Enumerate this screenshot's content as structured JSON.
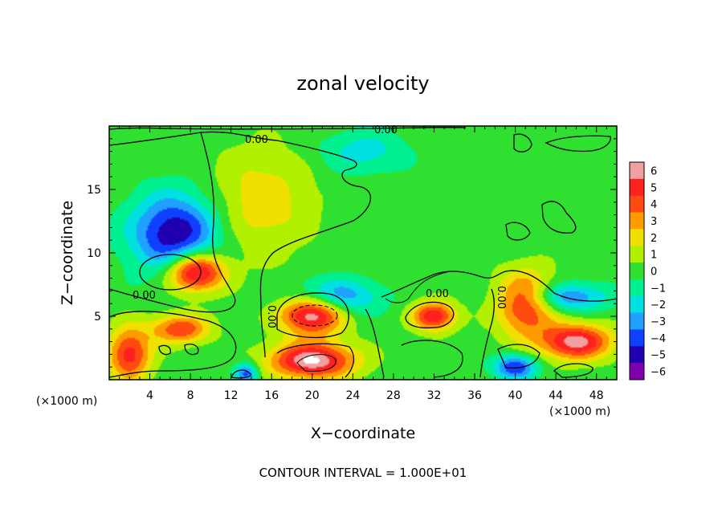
{
  "chart_data": {
    "type": "heatmap",
    "title": "zonal velocity",
    "xlabel": "X−coordinate",
    "ylabel": "Z−coordinate",
    "x_unit_left": "(×1000 m)",
    "x_unit_right": "(×1000 m)",
    "xlim": [
      0,
      50
    ],
    "ylim": [
      0,
      20
    ],
    "xticks": [
      4,
      8,
      12,
      16,
      20,
      24,
      28,
      32,
      36,
      40,
      44,
      48
    ],
    "xtick_labels": [
      "4",
      "8",
      "12",
      "16",
      "20",
      "24",
      "28",
      "32",
      "36",
      "40",
      "44",
      "48"
    ],
    "yticks": [
      5,
      10,
      15
    ],
    "ytick_labels": [
      "5",
      "10",
      "15"
    ],
    "colorbar": {
      "levels": [
        6,
        5,
        4,
        3,
        2,
        1,
        0,
        -1,
        -2,
        -3,
        -4,
        -5,
        -6
      ],
      "labels": [
        "6",
        "5",
        "4",
        "3",
        "2",
        "1",
        "0",
        "−1",
        "−2",
        "−3",
        "−4",
        "−5",
        "−6"
      ],
      "colors": [
        "#f0a0a0",
        "#ff2020",
        "#ff4a10",
        "#ff9a00",
        "#f0e000",
        "#b0f000",
        "#30e030",
        "#00f090",
        "#00e0e0",
        "#20a0ff",
        "#1040ff",
        "#2000b0",
        "#8000b0"
      ]
    },
    "contour_labels": [
      "0.00",
      "0.00",
      "0.00",
      "0.00",
      "0.00",
      "0.00"
    ],
    "contour_interval": "CONTOUR INTERVAL = 1.000E+01",
    "approx_field_features": [
      {
        "x": 6.5,
        "z": 11.5,
        "value": -5.5,
        "sigma_x": 3.0,
        "sigma_z": 2.2
      },
      {
        "x": 8.5,
        "z": 8.5,
        "value": 7,
        "sigma_x": 2.0,
        "sigma_z": 1.1
      },
      {
        "x": 15,
        "z": 14,
        "value": 2.2,
        "sigma_x": 3.5,
        "sigma_z": 3.0
      },
      {
        "x": 20,
        "z": 5.2,
        "value": 7,
        "sigma_x": 2.2,
        "sigma_z": 1.1
      },
      {
        "x": 20,
        "z": 1.5,
        "value": 6.5,
        "sigma_x": 3.0,
        "sigma_z": 1.0
      },
      {
        "x": 32,
        "z": 5.0,
        "value": 5.5,
        "sigma_x": 1.5,
        "sigma_z": 0.8
      },
      {
        "x": 41,
        "z": 6.0,
        "value": 5.0,
        "sigma_x": 2.0,
        "sigma_z": 1.8
      },
      {
        "x": 46,
        "z": 3.0,
        "value": 6.0,
        "sigma_x": 2.5,
        "sigma_z": 1.0
      },
      {
        "x": 7,
        "z": 4.0,
        "value": 4.5,
        "sigma_x": 2.0,
        "sigma_z": 0.8
      },
      {
        "x": 2,
        "z": 2.0,
        "value": 5.0,
        "sigma_x": 1.5,
        "sigma_z": 1.5
      },
      {
        "x": 13.5,
        "z": 0.5,
        "value": -4.0,
        "sigma_x": 0.8,
        "sigma_z": 0.6
      },
      {
        "x": 40,
        "z": 1.0,
        "value": -4.5,
        "sigma_x": 1.5,
        "sigma_z": 0.7
      },
      {
        "x": 45,
        "z": 6.5,
        "value": -3.5,
        "sigma_x": 3.0,
        "sigma_z": 0.8
      },
      {
        "x": 25,
        "z": 18,
        "value": -2.0,
        "sigma_x": 3.0,
        "sigma_z": 1.2
      },
      {
        "x": 22,
        "z": 6.5,
        "value": -4.0,
        "sigma_x": 3.0,
        "sigma_z": 1.0
      }
    ]
  }
}
